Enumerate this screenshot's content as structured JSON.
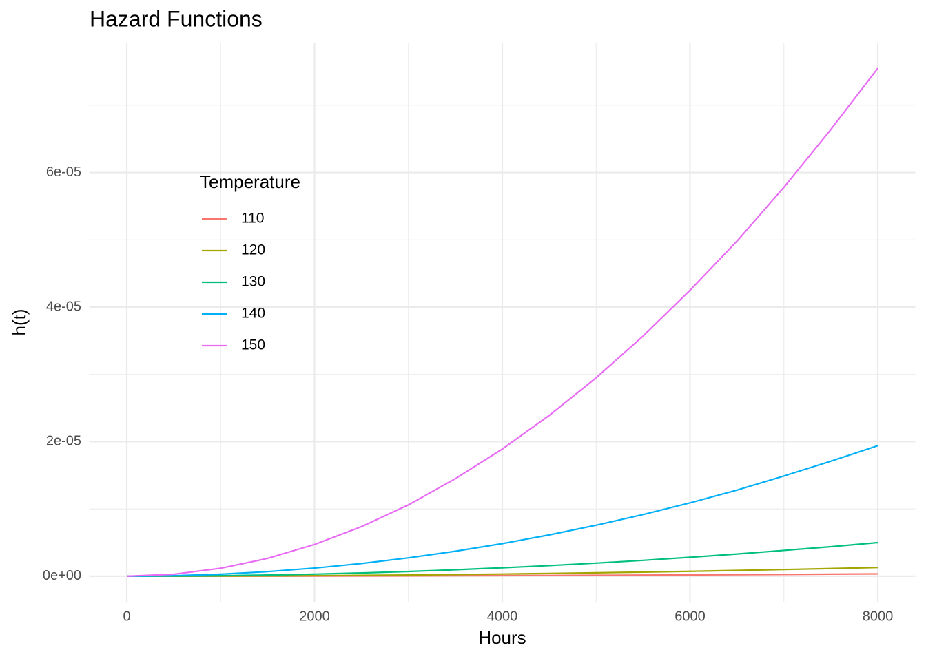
{
  "chart_data": {
    "type": "line",
    "title": "Hazard Functions",
    "x_label": "Hours",
    "y_label": "h(t)",
    "x": [
      0,
      500,
      1000,
      1500,
      2000,
      2500,
      3000,
      3500,
      4000,
      4500,
      5000,
      5500,
      6000,
      6500,
      7000,
      7500,
      8000
    ],
    "series": [
      {
        "name": "110",
        "color": "#F8766D",
        "values": [
          0,
          1.4e-09,
          5.5e-09,
          1.23e-08,
          2.19e-08,
          3.42e-08,
          4.92e-08,
          6.7e-08,
          8.75e-08,
          1.11e-07,
          1.37e-07,
          1.65e-07,
          1.97e-07,
          2.31e-07,
          2.68e-07,
          3.08e-07,
          3.5e-07
        ]
      },
      {
        "name": "120",
        "color": "#A3A500",
        "values": [
          0,
          5e-09,
          2e-08,
          4.6e-08,
          8.1e-08,
          1.27e-07,
          1.83e-07,
          2.49e-07,
          3.25e-07,
          4.11e-07,
          5.08e-07,
          6.15e-07,
          7.31e-07,
          8.58e-07,
          9.95e-07,
          1.14e-06,
          1.3e-06
        ]
      },
      {
        "name": "130",
        "color": "#00BF7D",
        "values": [
          0,
          2e-08,
          7.8e-08,
          1.76e-07,
          3.13e-07,
          4.88e-07,
          7.03e-07,
          9.57e-07,
          1.25e-06,
          1.58e-06,
          1.95e-06,
          2.36e-06,
          2.81e-06,
          3.3e-06,
          3.83e-06,
          4.39e-06,
          5e-06
        ]
      },
      {
        "name": "140",
        "color": "#00B0F6",
        "values": [
          0,
          7.6e-08,
          3.03e-07,
          6.82e-07,
          1.21e-06,
          1.89e-06,
          2.73e-06,
          3.71e-06,
          4.85e-06,
          6.14e-06,
          7.58e-06,
          9.17e-06,
          1.09e-05,
          1.28e-05,
          1.49e-05,
          1.71e-05,
          1.94e-05
        ]
      },
      {
        "name": "150",
        "color": "#E76BF3",
        "values": [
          0,
          2.95e-07,
          1.18e-06,
          2.65e-06,
          4.72e-06,
          7.37e-06,
          1.06e-05,
          1.45e-05,
          1.89e-05,
          2.39e-05,
          2.95e-05,
          3.57e-05,
          4.25e-05,
          4.98e-05,
          5.78e-05,
          6.64e-05,
          7.55e-05
        ]
      }
    ],
    "legend_title": "Temperature",
    "legend_position": "top-left",
    "xlim": [
      -400,
      8400
    ],
    "xticks": [
      0,
      2000,
      4000,
      6000,
      8000
    ],
    "x_minor_ticks": [
      1000,
      3000,
      5000,
      7000
    ],
    "ylim": [
      -3.8e-06,
      7.93e-05
    ],
    "yticks": [
      {
        "value": 0,
        "label": "0e+00"
      },
      {
        "value": 2e-05,
        "label": "2e-05"
      },
      {
        "value": 4e-05,
        "label": "4e-05"
      },
      {
        "value": 6e-05,
        "label": "6e-05"
      }
    ],
    "y_minor_ticks": [
      1e-05,
      3e-05,
      5e-05,
      7e-05
    ],
    "grid": true
  }
}
